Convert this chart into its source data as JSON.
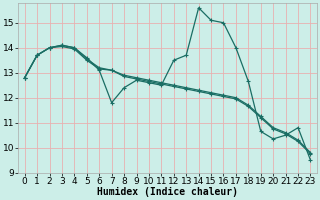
{
  "xlabel": "Humidex (Indice chaleur)",
  "bg_color": "#cceee8",
  "grid_color": "#e8b0b0",
  "line_color": "#1a6e64",
  "xlim": [
    -0.5,
    23.5
  ],
  "ylim": [
    9,
    15.8
  ],
  "yticks": [
    9,
    10,
    11,
    12,
    13,
    14,
    15
  ],
  "xticks": [
    0,
    1,
    2,
    3,
    4,
    5,
    6,
    7,
    8,
    9,
    10,
    11,
    12,
    13,
    14,
    15,
    16,
    17,
    18,
    19,
    20,
    21,
    22,
    23
  ],
  "line1_x": [
    0,
    1,
    2,
    3,
    4,
    5,
    6,
    7,
    8,
    9,
    10,
    11,
    12,
    13,
    14,
    15,
    16,
    17,
    18,
    19,
    20,
    21,
    22,
    23
  ],
  "line1_y": [
    12.8,
    13.7,
    14.0,
    14.1,
    14.0,
    13.6,
    13.1,
    11.8,
    12.4,
    12.7,
    12.6,
    12.5,
    13.5,
    13.7,
    15.6,
    15.1,
    15.0,
    14.0,
    12.65,
    10.65,
    10.35,
    10.5,
    10.8,
    9.5
  ],
  "line2_y": [
    12.8,
    13.7,
    14.0,
    14.05,
    13.95,
    13.5,
    13.15,
    13.1,
    12.85,
    12.75,
    12.65,
    12.55,
    12.45,
    12.35,
    12.25,
    12.15,
    12.05,
    11.95,
    11.65,
    11.2,
    10.75,
    10.55,
    10.25,
    9.75
  ],
  "line3_y": [
    12.8,
    13.7,
    14.0,
    14.1,
    14.0,
    13.55,
    13.2,
    13.1,
    12.9,
    12.8,
    12.7,
    12.6,
    12.5,
    12.4,
    12.3,
    12.2,
    12.1,
    12.0,
    11.7,
    11.25,
    10.8,
    10.6,
    10.3,
    9.8
  ],
  "marker_size": 2.5,
  "linewidth": 0.9,
  "xlabel_fontsize": 7,
  "tick_fontsize": 6.5
}
